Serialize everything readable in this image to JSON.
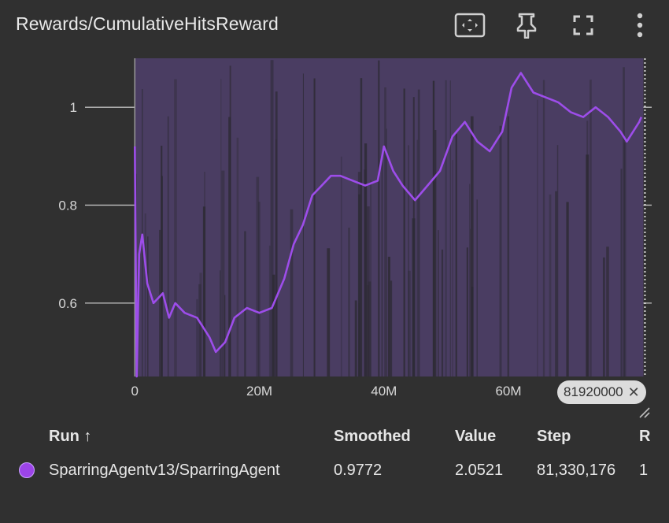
{
  "card": {
    "title": "Rewards/CumulativeHitsReward"
  },
  "icons": {
    "fit": "fit-to-domain-icon",
    "pin": "pin-icon",
    "fullscreen": "fullscreen-icon",
    "more": "more-vert-icon"
  },
  "hover": {
    "step_label": "81920000",
    "close_glyph": "✕"
  },
  "colors": {
    "background": "#303030",
    "plot_bg": "#2f2f2f",
    "band": "#4a3d62",
    "band_dark": "#2c2a33",
    "line": "#9d4dea"
  },
  "chart_data": {
    "type": "line",
    "title": "",
    "xlabel": "",
    "ylabel": "",
    "x_ticks": [
      "0",
      "20M",
      "40M",
      "60M"
    ],
    "x_tick_values": [
      0,
      20000000,
      40000000,
      60000000
    ],
    "y_ticks": [
      "0.6",
      "0.8",
      "1"
    ],
    "y_tick_values": [
      0.6,
      0.8,
      1.0
    ],
    "xlim": [
      -8000000,
      83000000
    ],
    "ylim": [
      0.45,
      1.1
    ],
    "grid": true,
    "hover_step": 81920000,
    "series": [
      {
        "name": "SparringAgentv13/SparringAgent",
        "x": [
          0,
          300000,
          700000,
          1200000,
          2000000,
          3000000,
          4500000,
          5500000,
          6500000,
          8000000,
          10000000,
          12000000,
          13000000,
          14500000,
          16000000,
          18000000,
          20000000,
          22000000,
          24000000,
          25500000,
          27000000,
          28500000,
          30000000,
          31500000,
          33000000,
          35000000,
          37000000,
          39000000,
          40000000,
          41500000,
          43000000,
          45000000,
          47000000,
          49000000,
          51000000,
          53000000,
          55000000,
          57000000,
          59000000,
          60500000,
          62000000,
          64000000,
          66000000,
          68000000,
          70000000,
          72000000,
          74000000,
          76000000,
          78000000,
          79000000,
          81000000,
          81330176
        ],
        "values": [
          0.92,
          0.45,
          0.7,
          0.74,
          0.64,
          0.6,
          0.62,
          0.57,
          0.6,
          0.58,
          0.57,
          0.53,
          0.5,
          0.52,
          0.57,
          0.59,
          0.58,
          0.59,
          0.65,
          0.72,
          0.76,
          0.82,
          0.84,
          0.86,
          0.86,
          0.85,
          0.84,
          0.85,
          0.92,
          0.87,
          0.84,
          0.81,
          0.84,
          0.87,
          0.94,
          0.97,
          0.93,
          0.91,
          0.95,
          1.04,
          1.07,
          1.03,
          1.02,
          1.01,
          0.99,
          0.98,
          1.0,
          0.98,
          0.95,
          0.93,
          0.97,
          0.98
        ]
      }
    ]
  },
  "runs_table": {
    "columns": [
      "Run ↑",
      "Smoothed",
      "Value",
      "Step",
      "R"
    ],
    "rows": [
      {
        "color": "#9c44e8",
        "run": "SparringAgentv13/SparringAgent",
        "smoothed": "0.9772",
        "value": "2.0521",
        "step": "81,330,176",
        "relative": "1"
      }
    ]
  }
}
